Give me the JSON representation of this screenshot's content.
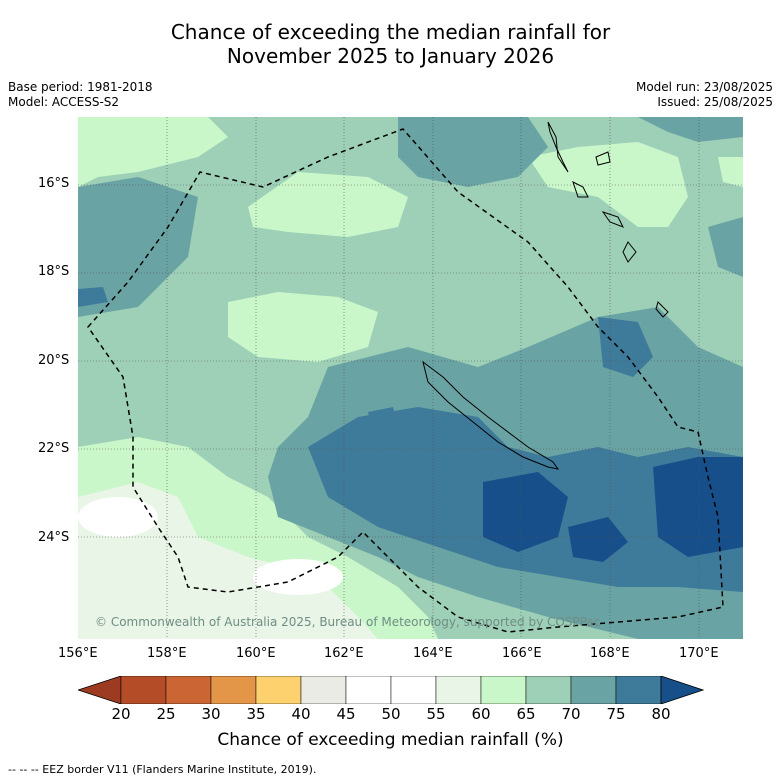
{
  "title": {
    "line1": "Chance of exceeding the median rainfall for",
    "line2": "November 2025 to January 2026"
  },
  "meta": {
    "base_period": "Base period: 1981-2018",
    "model": "Model: ACCESS-S2",
    "model_run": "Model run: 23/08/2025",
    "issued": "Issued: 25/08/2025"
  },
  "map": {
    "lat_ticks": [
      "16°S",
      "18°S",
      "20°S",
      "22°S",
      "24°S"
    ],
    "lon_ticks": [
      "156°E",
      "158°E",
      "160°E",
      "162°E",
      "164°E",
      "166°E",
      "168°E",
      "170°E"
    ],
    "copyright": "© Commonwealth of Australia 2025, Bureau of Meteorology, supported by COSPPac",
    "colors": {
      "c45_50": "#ffffff",
      "c55_60": "#e9f5e6",
      "c60_65": "#c9f7c9",
      "c65_70": "#9dd0b7",
      "c70_75": "#6aa3a3",
      "c75_80": "#3e7a9a",
      "c80p": "#174f8a"
    }
  },
  "colorbar": {
    "labels": [
      "20",
      "25",
      "30",
      "35",
      "40",
      "45",
      "50",
      "55",
      "60",
      "65",
      "70",
      "75",
      "80"
    ],
    "colors": [
      "#9c3b22",
      "#b34c27",
      "#cb6534",
      "#e39548",
      "#fdd26e",
      "#ebebe6",
      "#ffffff",
      "#ffffff",
      "#e9f5e6",
      "#c9f7c9",
      "#9dd0b7",
      "#6aa3a3",
      "#3e7a9a",
      "#174f8a"
    ],
    "title": "Chance of exceeding median rainfall (%)"
  },
  "footnote": "--  --  -- EEZ border V11 (Flanders Marine Institute, 2019)."
}
